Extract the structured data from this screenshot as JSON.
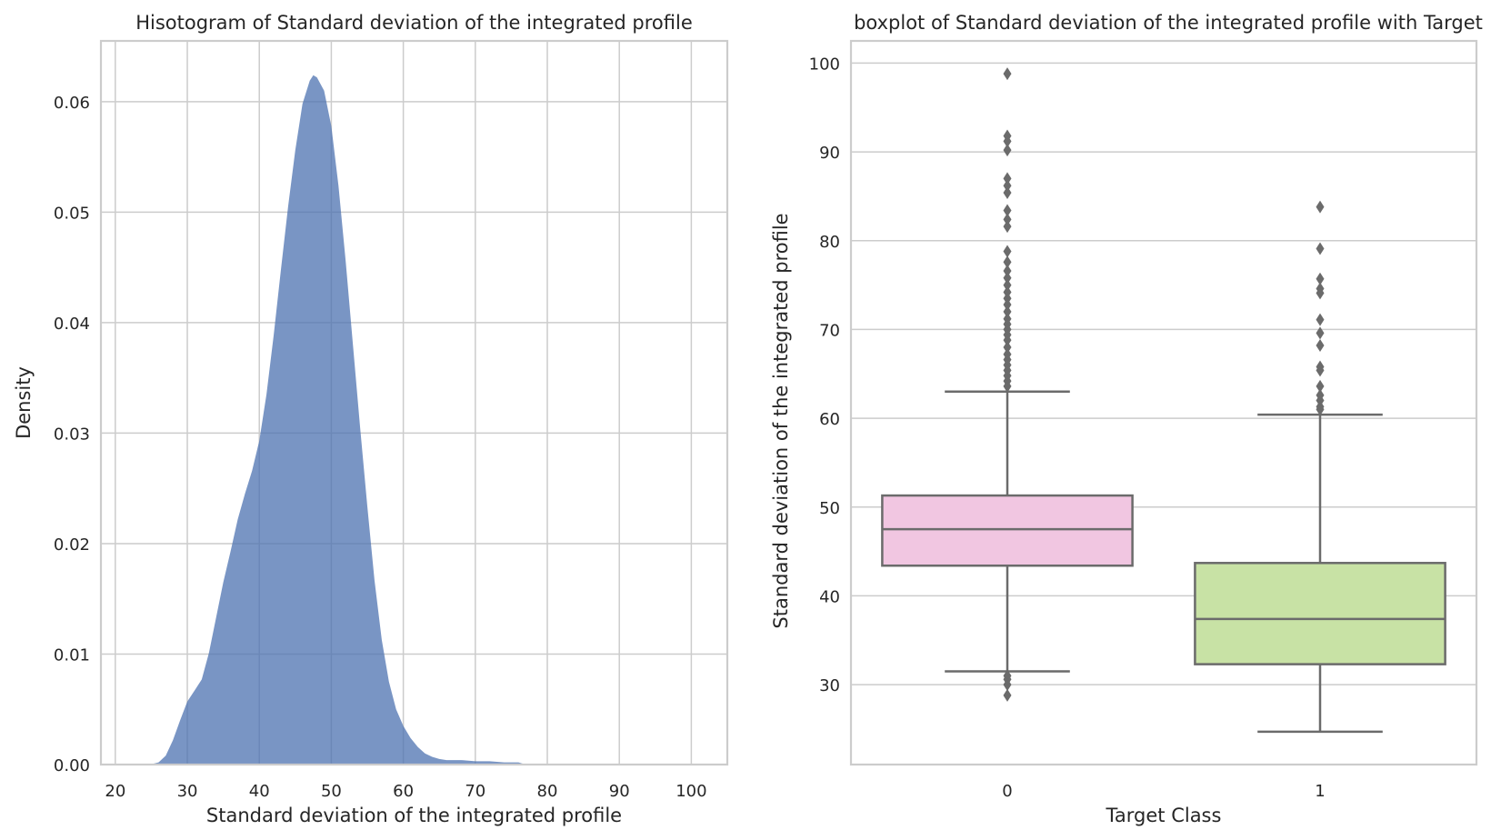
{
  "chart_data": [
    {
      "type": "area",
      "title": "Hisotogram of Standard deviation of the integrated profile",
      "xlabel": "Standard deviation of the integrated profile",
      "ylabel": "Density",
      "xlim": [
        18,
        105
      ],
      "ylim": [
        0,
        0.0655
      ],
      "xticks": [
        20,
        30,
        40,
        50,
        60,
        70,
        80,
        90,
        100
      ],
      "yticks": [
        0.0,
        0.01,
        0.02,
        0.03,
        0.04,
        0.05,
        0.06
      ],
      "ytick_labels": [
        "0.00",
        "0.01",
        "0.02",
        "0.03",
        "0.04",
        "0.05",
        "0.06"
      ],
      "grid": true,
      "fill_color": "#4c72b0",
      "series": [
        {
          "x": [
            24.8,
            26,
            27,
            28,
            29,
            30,
            31,
            32,
            33,
            34,
            35,
            36,
            37,
            38,
            39,
            40,
            41,
            42,
            43,
            44,
            45,
            46,
            47,
            47.5,
            48,
            49,
            50,
            51,
            52,
            53,
            54,
            55,
            56,
            57,
            58,
            59,
            60,
            61,
            62,
            63,
            64,
            65,
            66,
            68,
            70,
            72,
            74,
            76,
            77
          ],
          "y": [
            0.0,
            0.0002,
            0.0008,
            0.0022,
            0.004,
            0.0057,
            0.0067,
            0.0077,
            0.0101,
            0.0133,
            0.0165,
            0.0193,
            0.0222,
            0.0245,
            0.0266,
            0.0293,
            0.0335,
            0.0389,
            0.0448,
            0.0505,
            0.0556,
            0.0598,
            0.0619,
            0.0624,
            0.0622,
            0.061,
            0.0578,
            0.0524,
            0.0455,
            0.038,
            0.0305,
            0.0234,
            0.0167,
            0.0113,
            0.0075,
            0.005,
            0.0035,
            0.0024,
            0.0016,
            0.001,
            0.0007,
            0.0005,
            0.0004,
            0.0004,
            0.0003,
            0.0003,
            0.0002,
            0.0002,
            0.0
          ]
        }
      ]
    },
    {
      "type": "box",
      "title": "boxplot of Standard deviation of the integrated profile with Target",
      "xlabel": "Target Class",
      "ylabel": "Standard deviation of the integrated profile",
      "categories": [
        "0",
        "1"
      ],
      "ylim": [
        21,
        102.5
      ],
      "yticks": [
        30,
        40,
        50,
        60,
        70,
        80,
        90,
        100
      ],
      "grid": true,
      "boxes": [
        {
          "category": "0",
          "color": "#f1c6e1",
          "whisker_low": 31.5,
          "q1": 43.4,
          "median": 47.5,
          "q3": 51.3,
          "whisker_high": 63.0,
          "outliers": [
            98.8,
            91.8,
            91.2,
            90.2,
            87.0,
            86.2,
            85.4,
            83.4,
            82.4,
            81.6,
            78.8,
            77.6,
            76.6,
            75.8,
            75.0,
            74.2,
            73.5,
            72.8,
            72.0,
            71.2,
            70.6,
            70.0,
            69.4,
            68.8,
            68.0,
            67.2,
            66.6,
            66.0,
            65.4,
            64.8,
            64.2,
            63.6,
            31.0,
            30.6,
            30.0,
            28.8
          ]
        },
        {
          "category": "1",
          "color": "#c8e2a5",
          "whisker_low": 24.7,
          "q1": 32.3,
          "median": 37.4,
          "q3": 43.7,
          "whisker_high": 60.4,
          "outliers": [
            83.8,
            79.1,
            75.7,
            74.6,
            74.1,
            71.1,
            69.6,
            68.2,
            65.8,
            65.4,
            63.6,
            62.6,
            62.0,
            61.3,
            61.0
          ]
        }
      ]
    }
  ]
}
